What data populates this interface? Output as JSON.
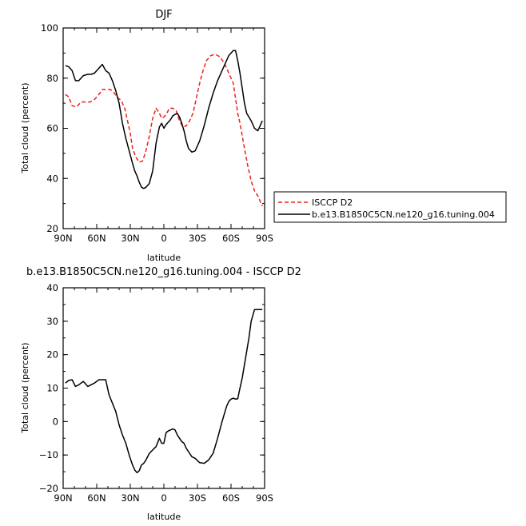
{
  "chart_data": [
    {
      "type": "line",
      "title": "DJF",
      "xlabel": "latitude",
      "ylabel": "Total cloud (percent)",
      "xlim": [
        90,
        -90
      ],
      "ylim": [
        20,
        100
      ],
      "x_ticks": [
        90,
        60,
        30,
        0,
        -30,
        -60,
        -90
      ],
      "x_tick_labels": [
        "90N",
        "60N",
        "30N",
        "0",
        "30S",
        "60S",
        "90S"
      ],
      "y_ticks": [
        20,
        40,
        60,
        80,
        100
      ],
      "y_tick_labels": [
        "20",
        "40",
        "60",
        "80",
        "100"
      ],
      "legend_position": "right",
      "series": [
        {
          "name": "ISCCP D2",
          "color": "#e8231e",
          "style": "dashed",
          "x": [
            88,
            85,
            82,
            78,
            74,
            70,
            66,
            62,
            58,
            55,
            52,
            48,
            45,
            42,
            38,
            35,
            32,
            30,
            28,
            25,
            22,
            19,
            16,
            13,
            10,
            7,
            4,
            2,
            0,
            -2,
            -5,
            -8,
            -11,
            -14,
            -17,
            -20,
            -23,
            -26,
            -29,
            -32,
            -35,
            -38,
            -42,
            -46,
            -50,
            -54,
            -58,
            -62,
            -64,
            -66,
            -68,
            -70,
            -72,
            -75,
            -78,
            -81,
            -84,
            -88
          ],
          "y": [
            73.5,
            72.5,
            69,
            68.5,
            70.5,
            70.5,
            70.5,
            71.5,
            73.5,
            75.5,
            75.5,
            75.5,
            74.5,
            72.5,
            71,
            68,
            62,
            58,
            52,
            48.5,
            46.5,
            47,
            51,
            57,
            64,
            68,
            66,
            64,
            64.5,
            65.5,
            68,
            68,
            67,
            63,
            60.5,
            61,
            63,
            66,
            72,
            78,
            83,
            87,
            89,
            89.5,
            88.5,
            86,
            82,
            78,
            72,
            66,
            62,
            57,
            52,
            45,
            39,
            35,
            33,
            29
          ]
        },
        {
          "name": "b.e13.B1850C5CN.ne120_g16.tuning.004",
          "color": "#000000",
          "style": "solid",
          "x": [
            88,
            85,
            82,
            79,
            76,
            72,
            68,
            65,
            62,
            58,
            55,
            52,
            49,
            46,
            43,
            40,
            37,
            34,
            31,
            28,
            26,
            24,
            22,
            20,
            18,
            16,
            13,
            10,
            7,
            4,
            2,
            0,
            -2,
            -4,
            -6,
            -8,
            -10,
            -12,
            -14,
            -16,
            -18,
            -20,
            -22,
            -25,
            -28,
            -32,
            -36,
            -40,
            -44,
            -48,
            -52,
            -56,
            -58,
            -60,
            -62,
            -64,
            -66,
            -68,
            -70,
            -72,
            -74,
            -76,
            -78,
            -81,
            -84,
            -88
          ],
          "y": [
            85,
            84.5,
            83,
            79,
            79,
            81,
            81.5,
            81.5,
            82,
            84,
            85.5,
            83,
            82,
            79,
            75,
            70,
            62,
            56,
            51,
            46,
            43,
            41,
            38.5,
            36.5,
            36,
            36.5,
            38,
            43,
            54,
            60.5,
            62,
            60,
            61.5,
            62.5,
            63.5,
            65,
            65.5,
            66,
            64.5,
            62,
            59,
            55,
            52,
            50.5,
            51,
            55,
            61,
            68,
            74,
            79,
            83,
            87,
            89,
            90,
            91,
            91,
            87,
            82,
            76,
            70,
            66,
            64.5,
            63,
            60,
            59,
            63
          ]
        }
      ]
    },
    {
      "type": "line",
      "title": "b.e13.B1850C5CN.ne120_g16.tuning.004 - ISCCP D2",
      "xlabel": "latitude",
      "ylabel": "Total cloud (percent)",
      "xlim": [
        90,
        -90
      ],
      "ylim": [
        -20,
        40
      ],
      "x_ticks": [
        90,
        60,
        30,
        0,
        -30,
        -60,
        -90
      ],
      "x_tick_labels": [
        "90N",
        "60N",
        "30N",
        "0",
        "30S",
        "60S",
        "90S"
      ],
      "y_ticks": [
        -20,
        -10,
        0,
        10,
        20,
        30,
        40
      ],
      "y_tick_labels": [
        "−20",
        "−10",
        "0",
        "10",
        "20",
        "30",
        "40"
      ],
      "series": [
        {
          "color": "#000000",
          "style": "solid",
          "x": [
            88,
            85,
            82,
            79,
            76,
            72,
            68,
            65,
            62,
            58,
            55,
            52,
            49,
            46,
            43,
            40,
            37,
            34,
            31,
            28,
            26,
            24,
            22,
            20,
            18,
            16,
            13,
            10,
            7,
            4,
            2,
            0,
            -2,
            -4,
            -6,
            -8,
            -10,
            -12,
            -14,
            -16,
            -18,
            -20,
            -22,
            -25,
            -28,
            -32,
            -36,
            -40,
            -44,
            -48,
            -52,
            -56,
            -58,
            -60,
            -62,
            -64,
            -66,
            -68,
            -70,
            -72,
            -74,
            -76,
            -78,
            -81,
            -84,
            -88
          ],
          "y": [
            11.5,
            12.3,
            12.5,
            10.5,
            11,
            12,
            10.5,
            11,
            11.5,
            12.5,
            12.5,
            12.5,
            8,
            5.5,
            3,
            -1,
            -4,
            -6.5,
            -10,
            -13,
            -14.5,
            -15.3,
            -14.7,
            -13,
            -12.5,
            -11.5,
            -9.5,
            -8.5,
            -7.5,
            -5,
            -6.5,
            -6.5,
            -3.3,
            -2.8,
            -2.5,
            -2.2,
            -2.5,
            -4,
            -5,
            -6,
            -6.5,
            -8,
            -9,
            -10.5,
            -11,
            -12.3,
            -12.5,
            -11.5,
            -9.5,
            -5,
            0,
            4.5,
            6,
            6.7,
            7,
            6.7,
            6.8,
            10,
            13,
            17,
            21,
            25,
            30,
            33.5,
            33.5,
            33.5
          ]
        }
      ]
    }
  ]
}
